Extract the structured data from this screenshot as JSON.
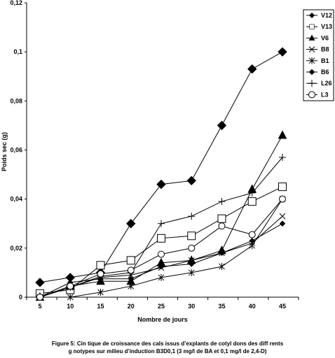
{
  "chart_data": {
    "type": "line",
    "title": "",
    "xlabel": "Nombre de jours",
    "ylabel": "Poids sec (g)",
    "x": [
      5,
      10,
      15,
      20,
      25,
      30,
      35,
      40,
      45
    ],
    "xlim": [
      5,
      45
    ],
    "ylim": [
      0,
      0.12
    ],
    "y_ticks": [
      0,
      0.02,
      0.04,
      0.06,
      0.08,
      0.1,
      0.12
    ],
    "y_tick_labels": [
      "0",
      "0,02",
      "0,04",
      "0,06",
      "0,08",
      "0,1",
      "0,12"
    ],
    "x_tick_labels": [
      "5",
      "10",
      "15",
      "20",
      "25",
      "30",
      "35",
      "40",
      "45"
    ],
    "grid": false,
    "legend_position": "top-right",
    "series": [
      {
        "name": "V12",
        "marker": "diamond-filled",
        "values": [
          0.006,
          0.008,
          0.01,
          0.03,
          0.046,
          0.0475,
          0.07,
          0.093,
          0.1
        ]
      },
      {
        "name": "V13",
        "marker": "square-open",
        "values": [
          0.0015,
          0.003,
          0.013,
          0.015,
          0.024,
          0.025,
          0.032,
          0.039,
          0.045
        ]
      },
      {
        "name": "V6",
        "marker": "triangle-filled",
        "values": [
          0.0,
          0.0045,
          0.0065,
          0.0065,
          0.014,
          0.015,
          0.019,
          0.044,
          0.066
        ]
      },
      {
        "name": "B8",
        "marker": "x",
        "values": [
          0.0,
          0.004,
          0.008,
          0.009,
          0.012,
          0.015,
          0.018,
          0.022,
          0.033
        ]
      },
      {
        "name": "B1",
        "marker": "star",
        "values": [
          0.0,
          0.0,
          0.002,
          0.0045,
          0.008,
          0.01,
          0.0125,
          0.021,
          0.04
        ]
      },
      {
        "name": "B6",
        "marker": "diamond-small",
        "values": [
          0.0,
          0.006,
          0.0075,
          0.0075,
          0.0125,
          0.0135,
          0.018,
          0.023,
          0.03
        ]
      },
      {
        "name": "L26",
        "marker": "plus",
        "values": [
          0.0,
          0.004,
          0.0085,
          0.01,
          0.03,
          0.033,
          0.039,
          0.0425,
          0.057
        ]
      },
      {
        "name": "L3",
        "marker": "circle-open",
        "values": [
          0.0,
          0.0045,
          0.0095,
          0.011,
          0.0175,
          0.02,
          0.029,
          0.0255,
          0.04
        ]
      }
    ]
  },
  "caption": {
    "line1": "Figure 5: Cin  tique de croissance des cals issus d’explants de cotyl  dons des diff  rents",
    "line2": "g  notypes sur milieu d’induction B3D0,1 (3 mg/l de BA et 0,1 mg/l de 2,4-D)"
  }
}
